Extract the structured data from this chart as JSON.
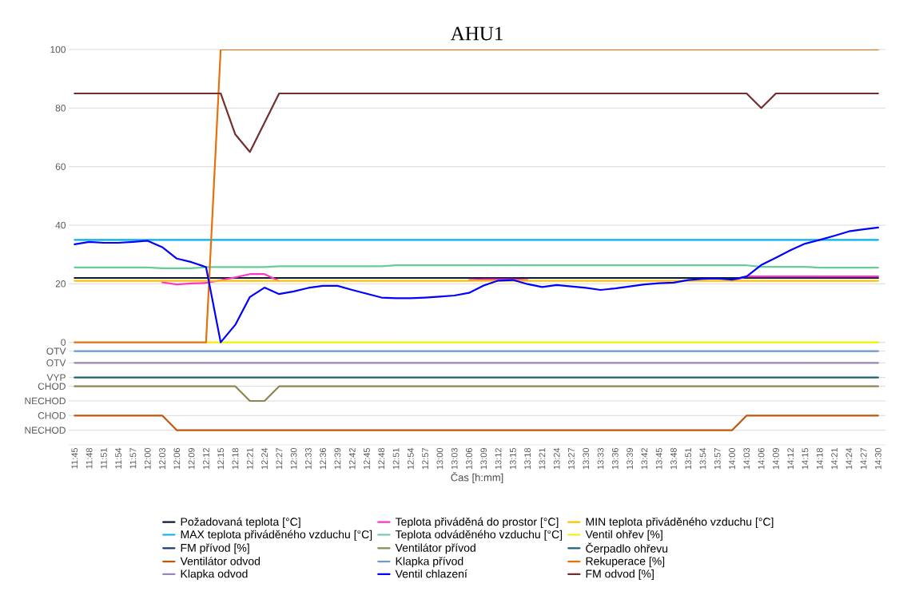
{
  "chart_data": {
    "type": "line",
    "title": "AHU1",
    "xlabel": "Čas [h:mm]",
    "categories": [
      "11:45",
      "11:48",
      "11:51",
      "11:54",
      "11:57",
      "12:00",
      "12:03",
      "12:06",
      "12:09",
      "12:12",
      "12:15",
      "12:18",
      "12:21",
      "12:24",
      "12:27",
      "12:30",
      "12:33",
      "12:36",
      "12:39",
      "12:42",
      "12:45",
      "12:48",
      "12:51",
      "12:54",
      "12:57",
      "13:00",
      "13:03",
      "13:06",
      "13:09",
      "13:12",
      "13:15",
      "13:18",
      "13:21",
      "13:24",
      "13:27",
      "13:30",
      "13:33",
      "13:36",
      "13:39",
      "13:42",
      "13:45",
      "13:48",
      "13:51",
      "13:54",
      "13:57",
      "14:00",
      "14:03",
      "14:06",
      "14:09",
      "14:12",
      "14:15",
      "14:18",
      "14:21",
      "14:24",
      "14:27",
      "14:30"
    ],
    "ylim": [
      -35,
      100
    ],
    "yticks": [
      0,
      20,
      40,
      60,
      80,
      100,
      {
        "value": -3,
        "label": "OTV"
      },
      {
        "value": -7,
        "label": "OTV"
      },
      {
        "value": -12,
        "label": "VYP"
      },
      {
        "value": -15,
        "label": "CHOD"
      },
      {
        "value": -20,
        "label": "NECHOD"
      },
      {
        "value": -25,
        "label": "CHOD"
      },
      {
        "value": -30,
        "label": "NECHOD"
      }
    ],
    "grid": "y",
    "legend": "bottom",
    "marker": "none",
    "line_style": "solid",
    "series": [
      {
        "name": "Požadovaná teplota [°C]",
        "color": "#0b1a33",
        "values": [
          22,
          22,
          22,
          22,
          22,
          22,
          22,
          22,
          22,
          22,
          22,
          22,
          22,
          22,
          22,
          22,
          22,
          22,
          22,
          22,
          22,
          22,
          22,
          22,
          22,
          22,
          22,
          22,
          22,
          22,
          22,
          22,
          22,
          22,
          22,
          22,
          22,
          22,
          22,
          22,
          22,
          22,
          22,
          22,
          22,
          22,
          22,
          22,
          22,
          22,
          22,
          22,
          22,
          22,
          22,
          22
        ]
      },
      {
        "name": "Teplota přiváděná do prostor [°C]",
        "color": "#ff33cc",
        "values": [
          null,
          null,
          null,
          null,
          null,
          null,
          20.5,
          19.8,
          20.1,
          20.3,
          21.2,
          22.2,
          23.3,
          23.3,
          21,
          null,
          null,
          null,
          null,
          null,
          null,
          null,
          null,
          null,
          null,
          null,
          null,
          21.3,
          21.5,
          21.5,
          21.5,
          21.3,
          null,
          null,
          null,
          null,
          null,
          null,
          null,
          null,
          null,
          null,
          null,
          null,
          null,
          21,
          22.5,
          22.5,
          22.5,
          22.5,
          22.5,
          22.5,
          22.5,
          22.5,
          22.5,
          22.5
        ]
      },
      {
        "name": "MIN teplota přiváděného vzduchu [°C]",
        "color": "#ffc000",
        "values": [
          21,
          21,
          21,
          21,
          21,
          21,
          21,
          21,
          21,
          21,
          21,
          21,
          21,
          21,
          21,
          21,
          21,
          21,
          21,
          21,
          21,
          21,
          21,
          21,
          21,
          21,
          21,
          21,
          21,
          21,
          21,
          21,
          21,
          21,
          21,
          21,
          21,
          21,
          21,
          21,
          21,
          21,
          21,
          21,
          21,
          21,
          21,
          21,
          21,
          21,
          21,
          21,
          21,
          21,
          21,
          21
        ]
      },
      {
        "name": "MAX teplota přiváděného vzduchu [°C]",
        "color": "#00b0f0",
        "values": [
          35,
          35,
          35,
          35,
          35,
          35,
          35,
          35,
          35,
          35,
          35,
          35,
          35,
          35,
          35,
          35,
          35,
          35,
          35,
          35,
          35,
          35,
          35,
          35,
          35,
          35,
          35,
          35,
          35,
          35,
          35,
          35,
          35,
          35,
          35,
          35,
          35,
          35,
          35,
          35,
          35,
          35,
          35,
          35,
          35,
          35,
          35,
          35,
          35,
          35,
          35,
          35,
          35,
          35,
          35,
          35
        ]
      },
      {
        "name": "Teplota odváděného vzduchu [°C]",
        "color": "#66cc99",
        "values": [
          25.6,
          25.6,
          25.6,
          25.6,
          25.6,
          25.6,
          25.3,
          25.3,
          25.3,
          25.7,
          25.7,
          25.7,
          25.7,
          25.7,
          26,
          26,
          26,
          26,
          26,
          26,
          26,
          26,
          26.3,
          26.3,
          26.3,
          26.3,
          26.3,
          26.3,
          26.3,
          26.3,
          26.3,
          26.3,
          26.3,
          26.3,
          26.3,
          26.3,
          26.3,
          26.3,
          26.3,
          26.3,
          26.3,
          26.3,
          26.3,
          26.3,
          26.3,
          26.3,
          26.3,
          25.8,
          25.8,
          25.8,
          25.8,
          25.5,
          25.5,
          25.5,
          25.5,
          25.5
        ]
      },
      {
        "name": "Ventil ohřev [%]",
        "color": "#f5f000",
        "values": [
          null,
          null,
          null,
          null,
          null,
          null,
          null,
          null,
          null,
          0,
          0,
          0,
          0,
          0,
          0,
          0,
          0,
          0,
          0,
          0,
          0,
          0,
          0,
          0,
          0,
          0,
          0,
          0,
          0,
          0,
          0,
          0,
          0,
          0,
          0,
          0,
          0,
          0,
          0,
          0,
          0,
          0,
          0,
          0,
          0,
          0,
          0,
          0,
          0,
          0,
          0,
          0,
          0,
          0,
          0,
          0
        ]
      },
      {
        "name": "FM přívod [%]",
        "color": "#203864",
        "values": [
          null,
          null,
          null,
          null,
          null,
          null,
          null,
          null,
          null,
          null,
          null,
          null,
          null,
          null,
          null,
          null,
          null,
          null,
          null,
          null,
          null,
          null,
          null,
          null,
          null,
          null,
          null,
          null,
          null,
          null,
          null,
          null,
          null,
          null,
          null,
          null,
          null,
          null,
          null,
          null,
          null,
          null,
          null,
          null,
          null,
          null,
          null,
          null,
          null,
          null,
          null,
          null,
          null,
          null,
          null,
          null
        ]
      },
      {
        "name": "Ventilátor přívod",
        "color": "#8c8650",
        "values": [
          -15,
          -15,
          -15,
          -15,
          -15,
          -15,
          -15,
          -15,
          -15,
          -15,
          -15,
          -15,
          -20,
          -20,
          -15,
          -15,
          -15,
          -15,
          -15,
          -15,
          -15,
          -15,
          -15,
          -15,
          -15,
          -15,
          -15,
          -15,
          -15,
          -15,
          -15,
          -15,
          -15,
          -15,
          -15,
          -15,
          -15,
          -15,
          -15,
          -15,
          -15,
          -15,
          -15,
          -15,
          -15,
          -15,
          -15,
          -15,
          -15,
          -15,
          -15,
          -15,
          -15,
          -15,
          -15,
          -15
        ]
      },
      {
        "name": "Čerpadlo ohřevu",
        "color": "#1f6070",
        "values": [
          -12,
          -12,
          -12,
          -12,
          -12,
          -12,
          -12,
          -12,
          -12,
          -12,
          -12,
          -12,
          -12,
          -12,
          -12,
          -12,
          -12,
          -12,
          -12,
          -12,
          -12,
          -12,
          -12,
          -12,
          -12,
          -12,
          -12,
          -12,
          -12,
          -12,
          -12,
          -12,
          -12,
          -12,
          -12,
          -12,
          -12,
          -12,
          -12,
          -12,
          -12,
          -12,
          -12,
          -12,
          -12,
          -12,
          -12,
          -12,
          -12,
          -12,
          -12,
          -12,
          -12,
          -12,
          -12,
          -12
        ]
      },
      {
        "name": "Ventilátor odvod",
        "color": "#c0560f",
        "values": [
          -25,
          -25,
          -25,
          -25,
          -25,
          -25,
          -25,
          -30,
          -30,
          -30,
          -30,
          -30,
          -30,
          -30,
          -30,
          -30,
          -30,
          -30,
          -30,
          -30,
          -30,
          -30,
          -30,
          -30,
          -30,
          -30,
          -30,
          -30,
          -30,
          -30,
          -30,
          -30,
          -30,
          -30,
          -30,
          -30,
          -30,
          -30,
          -30,
          -30,
          -30,
          -30,
          -30,
          -30,
          -30,
          -30,
          -25,
          -25,
          -25,
          -25,
          -25,
          -25,
          -25,
          -25,
          -25,
          -25
        ]
      },
      {
        "name": "Klapka přívod",
        "color": "#6f96d0",
        "values": [
          -3,
          -3,
          -3,
          -3,
          -3,
          -3,
          -3,
          -3,
          -3,
          -3,
          -3,
          -3,
          -3,
          -3,
          -3,
          -3,
          -3,
          -3,
          -3,
          -3,
          -3,
          -3,
          -3,
          -3,
          -3,
          -3,
          -3,
          -3,
          -3,
          -3,
          -3,
          -3,
          -3,
          -3,
          -3,
          -3,
          -3,
          -3,
          -3,
          -3,
          -3,
          -3,
          -3,
          -3,
          -3,
          -3,
          -3,
          -3,
          -3,
          -3,
          -3,
          -3,
          -3,
          -3,
          -3,
          -3
        ]
      },
      {
        "name": "Rekuperace [%]",
        "color": "#e8700a",
        "values": [
          0,
          0,
          0,
          0,
          0,
          0,
          0,
          0,
          0,
          0,
          100,
          100,
          100,
          100,
          100,
          100,
          100,
          100,
          100,
          100,
          100,
          100,
          100,
          100,
          100,
          100,
          100,
          100,
          100,
          100,
          100,
          100,
          100,
          100,
          100,
          100,
          100,
          100,
          100,
          100,
          100,
          100,
          100,
          100,
          100,
          100,
          100,
          100,
          100,
          100,
          100,
          100,
          100,
          100,
          100,
          100
        ]
      },
      {
        "name": "Klapka odvod",
        "color": "#9a85b8",
        "values": [
          -7,
          -7,
          -7,
          -7,
          -7,
          -7,
          -7,
          -7,
          -7,
          -7,
          -7,
          -7,
          -7,
          -7,
          -7,
          -7,
          -7,
          -7,
          -7,
          -7,
          -7,
          -7,
          -7,
          -7,
          -7,
          -7,
          -7,
          -7,
          -7,
          -7,
          -7,
          -7,
          -7,
          -7,
          -7,
          -7,
          -7,
          -7,
          -7,
          -7,
          -7,
          -7,
          -7,
          -7,
          -7,
          -7,
          -7,
          -7,
          -7,
          -7,
          -7,
          -7,
          -7,
          -7,
          -7,
          -7
        ]
      },
      {
        "name": "Ventil chlazení",
        "color": "#0000ff",
        "values": [
          33.5,
          34.3,
          34,
          34,
          34.3,
          34.7,
          32.5,
          28.6,
          27.4,
          25.7,
          0,
          6,
          15.5,
          18.7,
          16.5,
          17.4,
          18.6,
          19.3,
          19.3,
          17.9,
          16.6,
          15.3,
          15.1,
          15.1,
          15.3,
          15.6,
          16,
          16.9,
          19.4,
          21.1,
          21.3,
          19.9,
          18.9,
          19.6,
          19.1,
          18.6,
          17.9,
          18.4,
          19.1,
          19.8,
          20.2,
          20.4,
          21.3,
          21.7,
          21.8,
          21.4,
          22.5,
          26.4,
          28.9,
          31.5,
          33.7,
          35,
          36.4,
          37.9,
          38.6,
          39.2
        ]
      },
      {
        "name": "FM odvod [%]",
        "color": "#722f2f",
        "values": [
          85,
          85,
          85,
          85,
          85,
          85,
          85,
          85,
          85,
          85,
          85,
          71,
          65,
          75,
          85,
          85,
          85,
          85,
          85,
          85,
          85,
          85,
          85,
          85,
          85,
          85,
          85,
          85,
          85,
          85,
          85,
          85,
          85,
          85,
          85,
          85,
          85,
          85,
          85,
          85,
          85,
          85,
          85,
          85,
          85,
          85,
          85,
          80,
          85,
          85,
          85,
          85,
          85,
          85,
          85,
          85
        ]
      }
    ]
  }
}
